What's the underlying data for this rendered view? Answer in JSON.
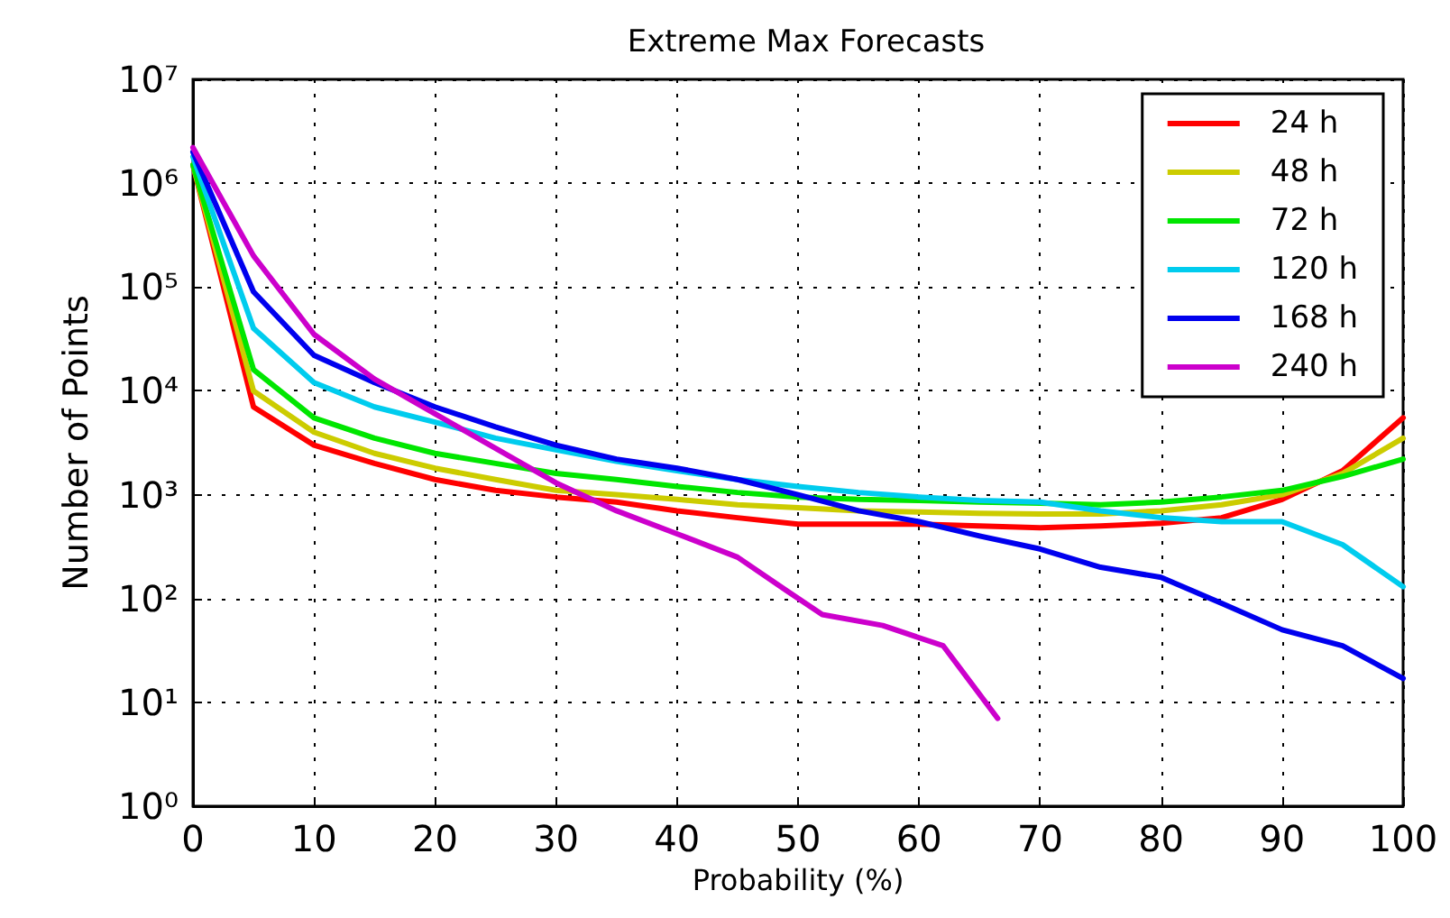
{
  "chart_data": {
    "type": "line",
    "title": "Extreme Max Forecasts",
    "xlabel": "Probability (%)",
    "ylabel": "Number of Points",
    "x": [
      0,
      5,
      10,
      15,
      20,
      25,
      30,
      35,
      40,
      45,
      50,
      55,
      60,
      65,
      70,
      75,
      80,
      85,
      90,
      95,
      100
    ],
    "xlim": [
      0,
      100
    ],
    "xticks": [
      0,
      10,
      20,
      30,
      40,
      50,
      60,
      70,
      80,
      90,
      100
    ],
    "ylim": [
      1,
      10000000
    ],
    "yticks": [
      {
        "value": 1,
        "label": "10⁰"
      },
      {
        "value": 10,
        "label": "10¹"
      },
      {
        "value": 100,
        "label": "10²"
      },
      {
        "value": 1000,
        "label": "10³"
      },
      {
        "value": 10000,
        "label": "10⁴"
      },
      {
        "value": 100000,
        "label": "10⁵"
      },
      {
        "value": 1000000,
        "label": "10⁶"
      },
      {
        "value": 10000000,
        "label": "10⁷"
      }
    ],
    "log": "y",
    "grid": true,
    "legend": "top right",
    "marker": "none",
    "line_style": "solid",
    "series": [
      {
        "name": "24 h",
        "color": "#ff0000",
        "values": [
          1500000,
          7000,
          3000,
          2000,
          1400,
          1100,
          950,
          850,
          700,
          600,
          520,
          520,
          520,
          500,
          480,
          500,
          530,
          600,
          900,
          1700,
          5500
        ]
      },
      {
        "name": "48 h",
        "color": "#cccc00",
        "values": [
          1500000,
          10000,
          4000,
          2500,
          1800,
          1400,
          1100,
          1000,
          900,
          800,
          750,
          700,
          680,
          660,
          650,
          650,
          700,
          800,
          1000,
          1600,
          3500
        ]
      },
      {
        "name": "72 h",
        "color": "#00e600",
        "values": [
          1500000,
          16000,
          5500,
          3500,
          2500,
          2000,
          1600,
          1400,
          1200,
          1050,
          950,
          900,
          880,
          850,
          830,
          800,
          850,
          950,
          1100,
          1500,
          2200
        ]
      },
      {
        "name": "120 h",
        "color": "#00ccee",
        "values": [
          1800000,
          40000,
          12000,
          7000,
          5000,
          3500,
          2700,
          2100,
          1700,
          1400,
          1200,
          1050,
          950,
          880,
          850,
          700,
          600,
          550,
          550,
          330,
          130
        ]
      },
      {
        "name": "168 h",
        "color": "#0000ee",
        "values": [
          2000000,
          90000,
          22000,
          12000,
          7000,
          4500,
          3000,
          2200,
          1800,
          1400,
          1000,
          700,
          550,
          400,
          300,
          200,
          160,
          90,
          50,
          35,
          17
        ]
      },
      {
        "name": "240 h",
        "color": "#cc00cc",
        "x": [
          0,
          5,
          10,
          15,
          20,
          25,
          30,
          35,
          40,
          45,
          49,
          52,
          57,
          62,
          66.5
        ],
        "values": [
          2200000,
          200000,
          35000,
          13000,
          6000,
          2800,
          1300,
          700,
          420,
          250,
          120,
          70,
          55,
          35,
          7
        ]
      }
    ]
  }
}
